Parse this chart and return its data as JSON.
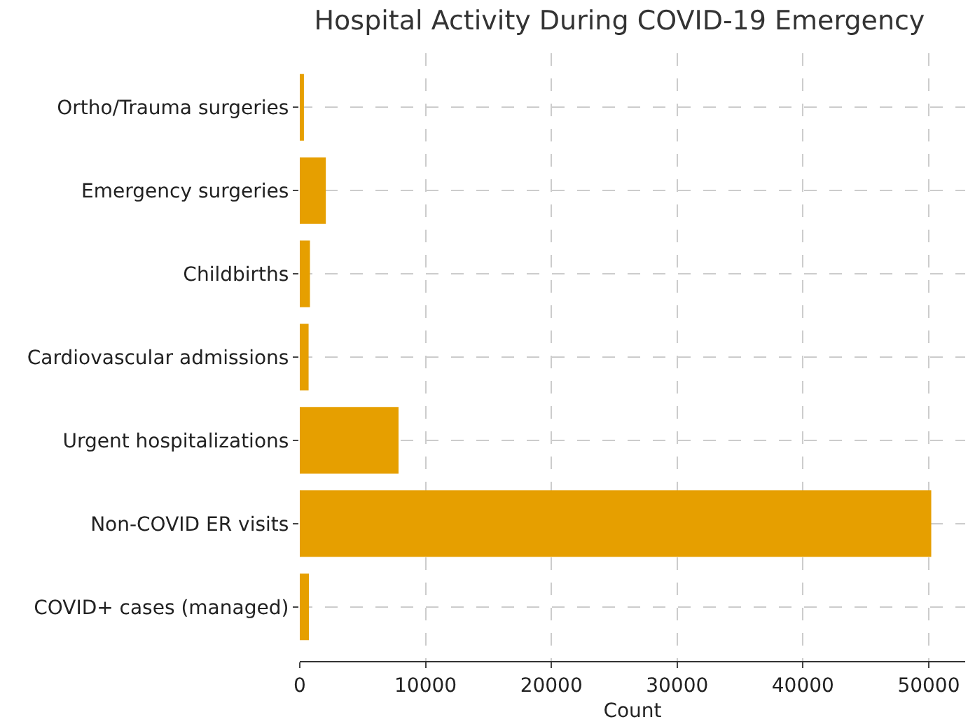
{
  "chart_data": {
    "type": "bar",
    "orientation": "horizontal",
    "title": "Hospital Activity During COVID-19 Emergency",
    "xlabel": "Count",
    "categories": [
      "Ortho/Trauma surgeries",
      "Emergency surgeries",
      "Childbirths",
      "Cardiovascular admissions",
      "Urgent hospitalizations",
      "Non-COVID ER visits",
      "COVID+ cases (managed)"
    ],
    "values": [
      330,
      2070,
      810,
      700,
      7850,
      50200,
      730
    ],
    "color": "#e69f00",
    "xlim": [
      0,
      52900
    ],
    "xticks": [
      0,
      10000,
      20000,
      30000,
      40000,
      50000
    ],
    "grid": true
  }
}
